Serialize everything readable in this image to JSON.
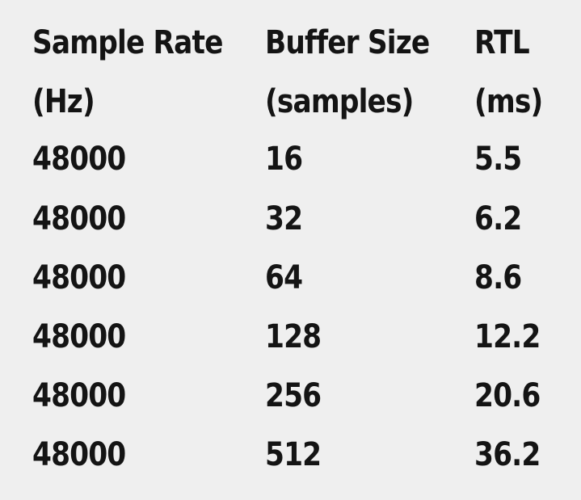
{
  "table": {
    "headers": [
      {
        "line1": "Sample Rate",
        "line2": "(Hz)"
      },
      {
        "line1": "Buffer Size",
        "line2": "(samples)"
      },
      {
        "line1": "RTL",
        "line2": "(ms)"
      }
    ],
    "rows": [
      [
        "48000",
        "16",
        "5.5"
      ],
      [
        "48000",
        "32",
        "6.2"
      ],
      [
        "48000",
        "64",
        "8.6"
      ],
      [
        "48000",
        "128",
        "12.2"
      ],
      [
        "48000",
        "256",
        "20.6"
      ],
      [
        "48000",
        "512",
        "36.2"
      ]
    ]
  }
}
